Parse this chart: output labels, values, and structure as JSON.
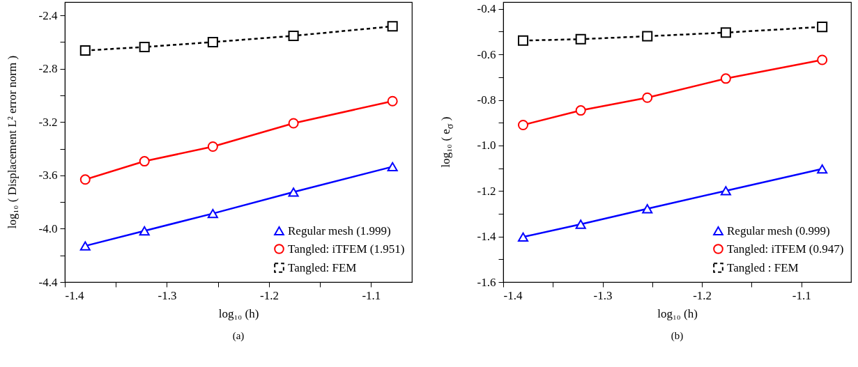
{
  "chart_data": [
    {
      "type": "line",
      "xlabel": "log₁₀ (h)",
      "ylabel": "log₁₀ ( Displacement L² error norm )",
      "annotations": [
        "(a)"
      ],
      "legend": "bottom right",
      "x": [
        -1.38,
        -1.322,
        -1.255,
        -1.176,
        -1.079
      ],
      "xlim": [
        -1.4,
        -1.06
      ],
      "xticks": [
        {
          "value": -1.4,
          "label": "-1.4"
        },
        {
          "value": -1.35,
          "label": null
        },
        {
          "value": -1.3,
          "label": "-1.3"
        },
        {
          "value": -1.25,
          "label": null
        },
        {
          "value": -1.2,
          "label": "-1.2"
        },
        {
          "value": -1.15,
          "label": null
        },
        {
          "value": -1.1,
          "label": "-1.1"
        }
      ],
      "ylim": [
        -4.4,
        -2.3
      ],
      "yticks": [
        {
          "value": -4.4,
          "label": "-4.4"
        },
        {
          "value": -4.2,
          "label": null
        },
        {
          "value": -4.0,
          "label": "-4.0"
        },
        {
          "value": -3.8,
          "label": null
        },
        {
          "value": -3.6,
          "label": "-3.6"
        },
        {
          "value": -3.4,
          "label": null
        },
        {
          "value": -3.2,
          "label": "-3.2"
        },
        {
          "value": -3.0,
          "label": null
        },
        {
          "value": -2.8,
          "label": "-2.8"
        },
        {
          "value": -2.6,
          "label": null
        },
        {
          "value": -2.4,
          "label": "-2.4"
        }
      ],
      "series": [
        {
          "name": "Regular mesh (1.999)",
          "color": "#0000ff",
          "marker": "triangle",
          "line_style": "solid",
          "values": [
            -4.129,
            -4.016,
            -3.886,
            -3.725,
            -3.535
          ]
        },
        {
          "name": "Tangled: iTFEM (1.951)",
          "color": "#ff0000",
          "marker": "circle",
          "line_style": "solid",
          "values": [
            -3.631,
            -3.494,
            -3.384,
            -3.209,
            -3.043
          ]
        },
        {
          "name": "Tangled: FEM",
          "color": "#000000",
          "marker": "square",
          "line_style": "dashed",
          "values": [
            -2.663,
            -2.637,
            -2.6,
            -2.553,
            -2.482
          ]
        }
      ]
    },
    {
      "type": "line",
      "xlabel": "log₁₀ (h)",
      "ylabel": "log₁₀ ( e$_{σ}$ )",
      "annotations": [
        "(b)"
      ],
      "legend": "bottom right",
      "x": [
        -1.38,
        -1.322,
        -1.255,
        -1.176,
        -1.079
      ],
      "xlim": [
        -1.4,
        -1.05
      ],
      "xticks": [
        {
          "value": -1.4,
          "label": "-1.4"
        },
        {
          "value": -1.35,
          "label": null
        },
        {
          "value": -1.3,
          "label": "-1.3"
        },
        {
          "value": -1.25,
          "label": null
        },
        {
          "value": -1.2,
          "label": "-1.2"
        },
        {
          "value": -1.15,
          "label": null
        },
        {
          "value": -1.1,
          "label": "-1.1"
        }
      ],
      "ylim": [
        -1.6,
        -0.37
      ],
      "yticks": [
        {
          "value": -1.6,
          "label": "-1.6"
        },
        {
          "value": -1.5,
          "label": null
        },
        {
          "value": -1.4,
          "label": "-1.4"
        },
        {
          "value": -1.3,
          "label": null
        },
        {
          "value": -1.2,
          "label": "-1.2"
        },
        {
          "value": -1.1,
          "label": null
        },
        {
          "value": -1.0,
          "label": "-1.0"
        },
        {
          "value": -0.9,
          "label": null
        },
        {
          "value": -0.8,
          "label": "-0.8"
        },
        {
          "value": -0.7,
          "label": null
        },
        {
          "value": -0.6,
          "label": "-0.6"
        },
        {
          "value": -0.5,
          "label": null
        },
        {
          "value": -0.4,
          "label": "-0.4"
        }
      ],
      "series": [
        {
          "name": "Regular mesh (0.999)",
          "color": "#0000ff",
          "marker": "triangle",
          "line_style": "solid",
          "values": [
            -1.402,
            -1.346,
            -1.278,
            -1.199,
            -1.103
          ]
        },
        {
          "name": "Tangled: iTFEM (0.947)",
          "color": "#ff0000",
          "marker": "circle",
          "line_style": "solid",
          "values": [
            -0.91,
            -0.846,
            -0.79,
            -0.706,
            -0.624
          ]
        },
        {
          "name": "Tangled : FEM",
          "color": "#000000",
          "marker": "square",
          "line_style": "dashed",
          "values": [
            -0.539,
            -0.533,
            -0.52,
            -0.504,
            -0.479
          ]
        }
      ]
    }
  ]
}
